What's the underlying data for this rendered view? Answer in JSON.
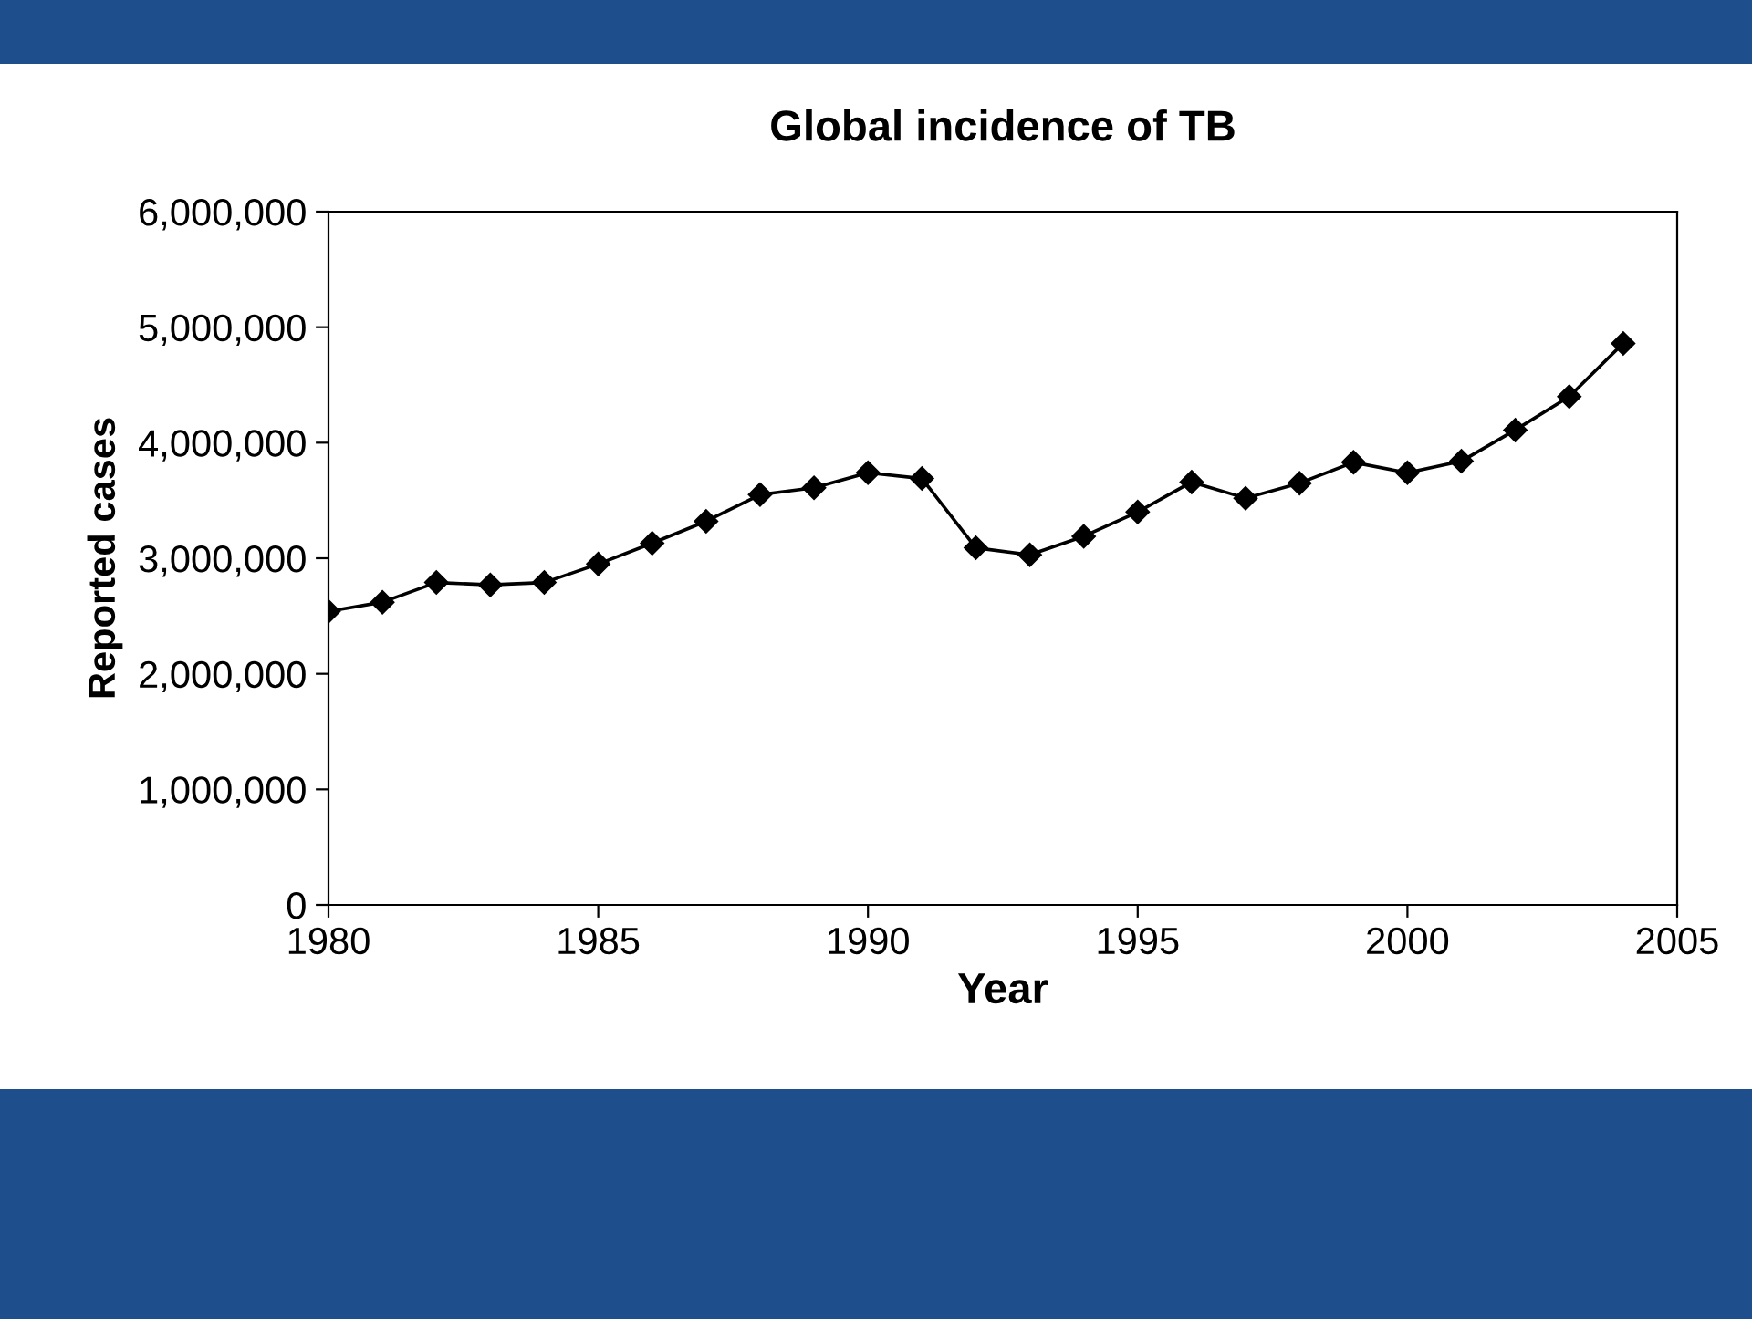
{
  "chart_data": {
    "type": "line",
    "title": "Global incidence of TB",
    "xlabel": "Year",
    "ylabel": "Reported cases",
    "x": [
      1980,
      1981,
      1982,
      1983,
      1984,
      1985,
      1986,
      1987,
      1988,
      1989,
      1990,
      1991,
      1992,
      1993,
      1994,
      1995,
      1996,
      1997,
      1998,
      1999,
      2000,
      2001,
      2002,
      2003,
      2004
    ],
    "series": [
      {
        "color": "#000000",
        "values": [
          2540000,
          2620000,
          2790000,
          2770000,
          2790000,
          2950000,
          3130000,
          3320000,
          3550000,
          3610000,
          3740000,
          3690000,
          3090000,
          3030000,
          3190000,
          3400000,
          3660000,
          3520000,
          3650000,
          3830000,
          3740000,
          3840000,
          4110000,
          4400000,
          4860000
        ]
      }
    ],
    "xlim": [
      1980,
      2005
    ],
    "xticks": [
      1980,
      1985,
      1990,
      1995,
      2000,
      2005
    ],
    "ylim": [
      0,
      6000000
    ],
    "yticks": [
      {
        "value": 0,
        "label": "0"
      },
      {
        "value": 1000000,
        "label": "1,000,000"
      },
      {
        "value": 2000000,
        "label": "2,000,000"
      },
      {
        "value": 3000000,
        "label": "3,000,000"
      },
      {
        "value": 4000000,
        "label": "4,000,000"
      },
      {
        "value": 5000000,
        "label": "5,000,000"
      },
      {
        "value": 6000000,
        "label": "6,000,000"
      }
    ],
    "grid": false,
    "legend": false,
    "marker": "diamond",
    "line_style": "solid"
  }
}
